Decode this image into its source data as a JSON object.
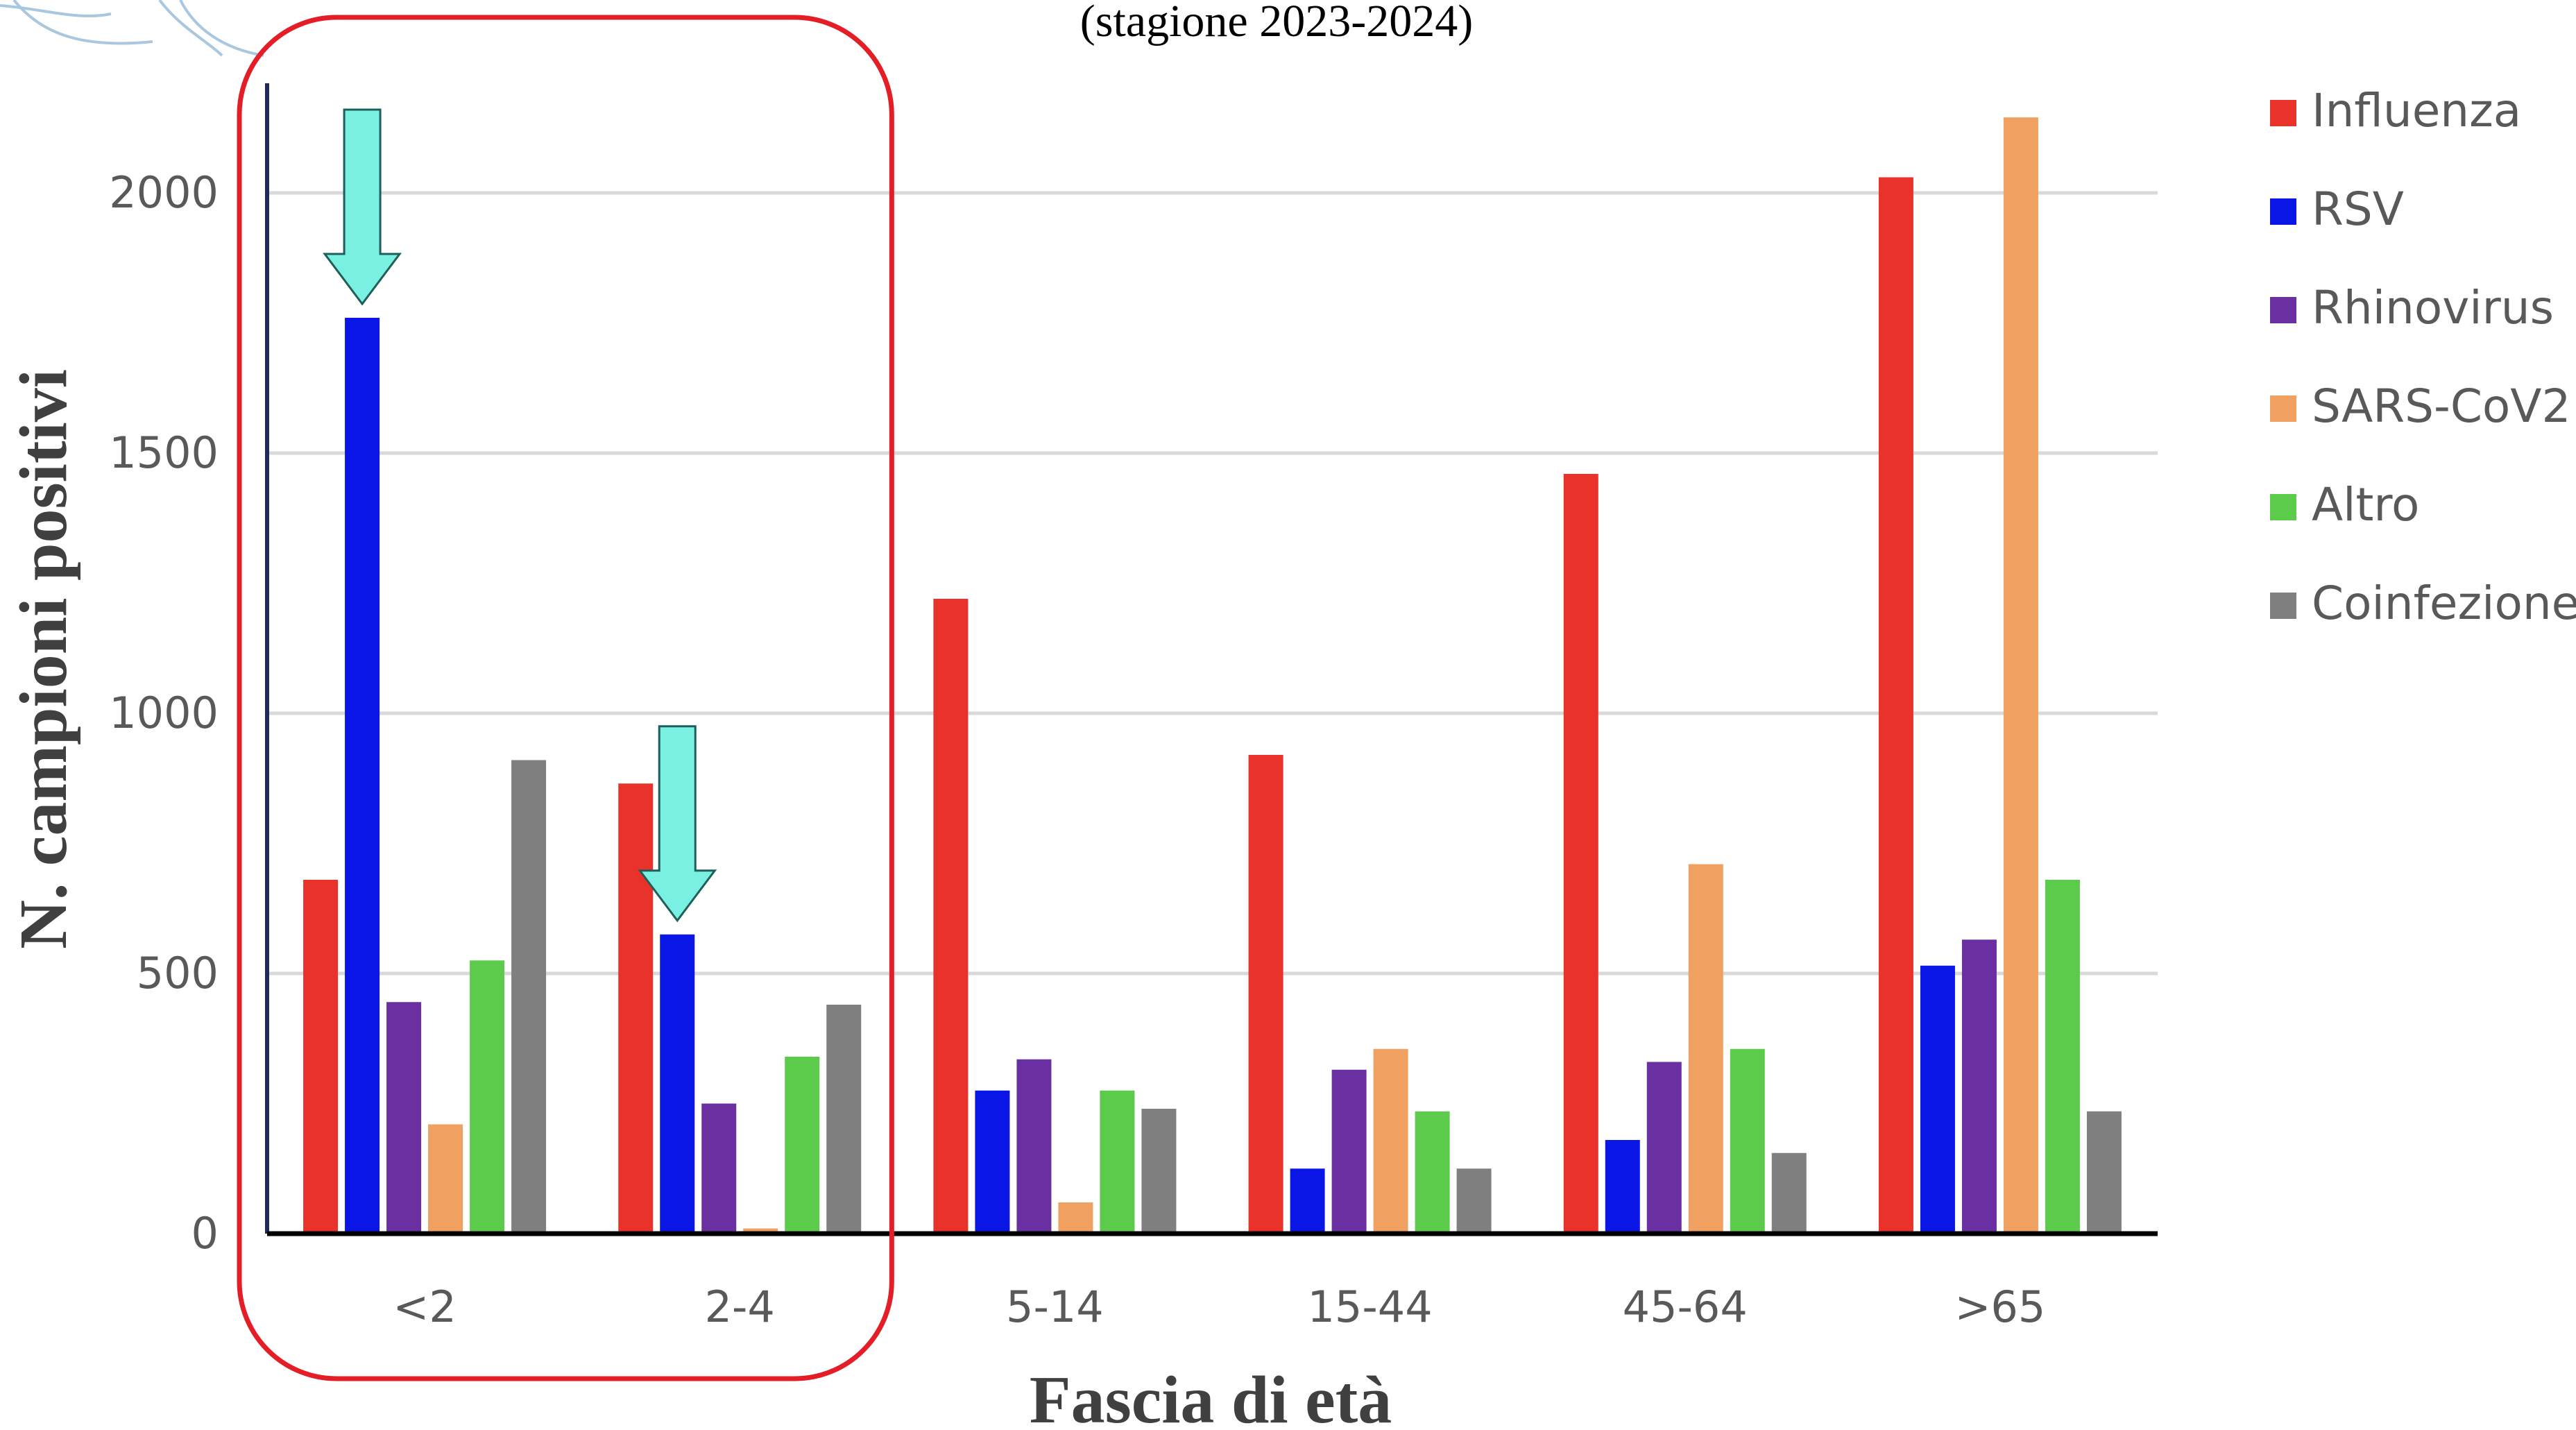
{
  "chart_data": {
    "type": "bar",
    "title": "(stagione 2023-2024)",
    "xlabel": "Fascia di età",
    "ylabel": "N. campioni positivi",
    "categories": [
      "<2",
      "2-4",
      "5-14",
      "15-44",
      "45-64",
      ">65"
    ],
    "series": [
      {
        "name": "Influenza",
        "color": "#E8322A",
        "values": [
          680,
          865,
          1220,
          920,
          1460,
          2030
        ]
      },
      {
        "name": "RSV",
        "color": "#0A16E6",
        "values": [
          1760,
          575,
          275,
          125,
          180,
          515
        ]
      },
      {
        "name": "Rhinovirus",
        "color": "#6A2FA0",
        "values": [
          445,
          250,
          335,
          315,
          330,
          565
        ]
      },
      {
        "name": "SARS-CoV2",
        "color": "#F0A060",
        "values": [
          210,
          10,
          60,
          355,
          710,
          2145
        ]
      },
      {
        "name": "Altro",
        "color": "#5CCB4C",
        "values": [
          525,
          340,
          275,
          235,
          355,
          680
        ]
      },
      {
        "name": "Coinfezione",
        "color": "#7F7F7F",
        "values": [
          910,
          440,
          240,
          125,
          155,
          235
        ]
      }
    ],
    "ylim": [
      0,
      2200
    ],
    "yticks": [
      0,
      500,
      1000,
      1500,
      2000
    ],
    "grid": true,
    "legend_position": "right",
    "highlight": {
      "categories": [
        "<2",
        "2-4"
      ],
      "color": "#E41E26"
    },
    "arrows": [
      {
        "category": "<2",
        "series": "RSV",
        "color": "#7AF0E2"
      },
      {
        "category": "2-4",
        "series": "RSV",
        "color": "#7AF0E2"
      }
    ]
  }
}
